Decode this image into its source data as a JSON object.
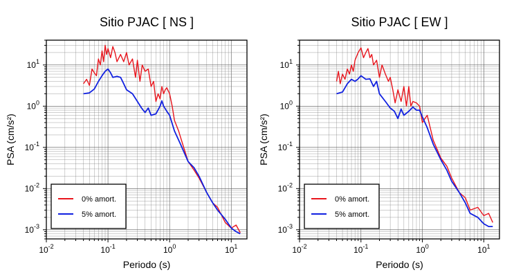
{
  "chart_data": [
    {
      "type": "line",
      "title": "Sitio PJAC [ NS ]",
      "xlabel": "Periodo (s)",
      "ylabel": "PSA (cm/s²)",
      "xscale": "log",
      "yscale": "log",
      "xlim": [
        0.01,
        18
      ],
      "ylim": [
        0.0006,
        40
      ],
      "grid": true,
      "legend_position": "bottom-left",
      "series": [
        {
          "name": "0% amort.",
          "color": "#e8141c",
          "x": [
            0.04,
            0.045,
            0.05,
            0.055,
            0.06,
            0.065,
            0.07,
            0.075,
            0.08,
            0.085,
            0.09,
            0.095,
            0.1,
            0.11,
            0.12,
            0.13,
            0.14,
            0.16,
            0.18,
            0.2,
            0.22,
            0.25,
            0.28,
            0.3,
            0.33,
            0.36,
            0.4,
            0.45,
            0.5,
            0.55,
            0.6,
            0.65,
            0.7,
            0.75,
            0.8,
            0.85,
            0.9,
            1.0,
            1.1,
            1.2,
            1.4,
            1.6,
            2.0,
            2.5,
            3.0,
            4.0,
            5.0,
            6.0,
            8.0,
            10.0,
            12.0,
            14.0
          ],
          "y": [
            3.5,
            4.5,
            3.2,
            8.0,
            6.5,
            5.5,
            14.0,
            10.0,
            22.0,
            12.0,
            30.0,
            18.0,
            25.0,
            15.0,
            28.0,
            20.0,
            12.0,
            18.0,
            12.0,
            20.0,
            10.0,
            14.0,
            5.0,
            13.0,
            4.0,
            10.0,
            7.0,
            8.0,
            3.0,
            4.0,
            1.3,
            2.0,
            1.5,
            3.0,
            2.0,
            2.5,
            2.8,
            2.0,
            1.0,
            0.45,
            0.25,
            0.13,
            0.045,
            0.028,
            0.018,
            0.008,
            0.0045,
            0.0035,
            0.0015,
            0.0011,
            0.0013,
            0.00085
          ]
        },
        {
          "name": "5% amort.",
          "color": "#1020e0",
          "x": [
            0.04,
            0.05,
            0.06,
            0.07,
            0.08,
            0.09,
            0.1,
            0.11,
            0.12,
            0.14,
            0.16,
            0.18,
            0.2,
            0.25,
            0.3,
            0.35,
            0.4,
            0.45,
            0.5,
            0.6,
            0.7,
            0.75,
            0.8,
            0.9,
            1.0,
            1.2,
            1.5,
            2.0,
            2.5,
            3.0,
            4.0,
            5.0,
            6.0,
            8.0,
            10.0,
            12.0,
            14.0
          ],
          "y": [
            2.0,
            2.1,
            2.6,
            4.0,
            5.5,
            7.0,
            8.0,
            6.5,
            5.0,
            5.3,
            5.0,
            3.5,
            2.5,
            2.0,
            1.3,
            0.9,
            0.7,
            0.9,
            0.6,
            0.65,
            1.0,
            1.35,
            1.0,
            0.75,
            0.6,
            0.25,
            0.12,
            0.045,
            0.032,
            0.02,
            0.008,
            0.0045,
            0.003,
            0.0018,
            0.0011,
            0.0009,
            0.0008
          ]
        }
      ]
    },
    {
      "type": "line",
      "title": "Sitio PJAC [ EW ]",
      "xlabel": "Periodo (s)",
      "ylabel": "PSA (cm/s²)",
      "xscale": "log",
      "yscale": "log",
      "xlim": [
        0.01,
        18
      ],
      "ylim": [
        0.0006,
        40
      ],
      "grid": true,
      "legend_position": "bottom-left",
      "series": [
        {
          "name": "0% amort.",
          "color": "#e8141c",
          "x": [
            0.04,
            0.043,
            0.046,
            0.05,
            0.055,
            0.06,
            0.065,
            0.07,
            0.075,
            0.08,
            0.09,
            0.1,
            0.11,
            0.12,
            0.13,
            0.14,
            0.15,
            0.16,
            0.18,
            0.2,
            0.22,
            0.25,
            0.28,
            0.3,
            0.33,
            0.36,
            0.4,
            0.45,
            0.5,
            0.55,
            0.6,
            0.65,
            0.7,
            0.8,
            0.9,
            1.0,
            1.1,
            1.2,
            1.5,
            2.0,
            2.5,
            3.0,
            4.0,
            5.0,
            6.0,
            8.0,
            10.0,
            12.0,
            14.0
          ],
          "y": [
            4.0,
            7.0,
            3.5,
            6.0,
            4.5,
            8.0,
            6.0,
            10.0,
            7.0,
            13.0,
            20.0,
            26.0,
            15.0,
            20.0,
            25.0,
            15.0,
            18.0,
            10.0,
            13.0,
            5.0,
            10.0,
            6.0,
            4.0,
            5.0,
            2.5,
            1.2,
            2.5,
            1.3,
            3.0,
            1.0,
            3.0,
            1.0,
            1.3,
            1.2,
            1.0,
            0.4,
            0.5,
            0.6,
            0.15,
            0.055,
            0.035,
            0.018,
            0.008,
            0.006,
            0.003,
            0.0035,
            0.0022,
            0.0025,
            0.0015
          ]
        },
        {
          "name": "5% amort.",
          "color": "#1020e0",
          "x": [
            0.04,
            0.05,
            0.06,
            0.07,
            0.08,
            0.09,
            0.1,
            0.12,
            0.14,
            0.16,
            0.18,
            0.2,
            0.25,
            0.3,
            0.35,
            0.4,
            0.45,
            0.5,
            0.6,
            0.7,
            0.8,
            0.9,
            1.0,
            1.2,
            1.5,
            2.0,
            2.5,
            3.0,
            4.0,
            5.0,
            6.0,
            8.0,
            10.0,
            12.0,
            14.0
          ],
          "y": [
            2.0,
            2.2,
            3.5,
            4.5,
            4.0,
            4.6,
            5.5,
            4.5,
            4.6,
            3.0,
            4.0,
            2.0,
            1.3,
            0.9,
            0.75,
            0.5,
            0.85,
            0.6,
            0.75,
            0.95,
            0.8,
            0.8,
            0.55,
            0.3,
            0.12,
            0.05,
            0.028,
            0.015,
            0.008,
            0.0045,
            0.0025,
            0.002,
            0.0014,
            0.0012,
            0.0012
          ]
        }
      ]
    }
  ]
}
